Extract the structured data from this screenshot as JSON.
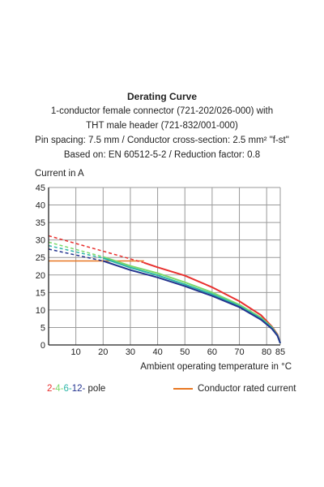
{
  "chart_data": {
    "type": "line",
    "title": "Derating Curve",
    "subtitle_lines": [
      "1-conductor female connector (721-202/026-000) with",
      "THT male header (721-832/001-000)",
      "Pin spacing: 7.5 mm / Conductor cross-section: 2.5 mm² \"f-st\"",
      "Based on: EN 60512-5-2 / Reduction factor: 0.8"
    ],
    "ylabel": "Current in A",
    "xlabel": "Ambient operating temperature in °C",
    "xlim": [
      0,
      85
    ],
    "ylim": [
      0,
      45
    ],
    "x_ticks": [
      "10",
      "20",
      "30",
      "40",
      "50",
      "60",
      "70",
      "80",
      "85"
    ],
    "y_ticks": [
      "0",
      "5",
      "10",
      "15",
      "20",
      "25",
      "30",
      "35",
      "40",
      "45"
    ],
    "grid": true,
    "series": [
      {
        "name": "2-pole",
        "color": "#e8302e",
        "dashed": [
          [
            0,
            31.2
          ],
          [
            35,
            23.5
          ]
        ],
        "values": [
          [
            35,
            23.5
          ],
          [
            40,
            22.2
          ],
          [
            50,
            19.8
          ],
          [
            60,
            16.5
          ],
          [
            70,
            12.5
          ],
          [
            78,
            8.5
          ],
          [
            82,
            5.2
          ],
          [
            84,
            3.0
          ],
          [
            85,
            0.5
          ]
        ]
      },
      {
        "name": "4-pole",
        "color": "#7bd96b",
        "dashed": [
          [
            0,
            29.4
          ],
          [
            20,
            25.2
          ]
        ],
        "values": [
          [
            20,
            25.2
          ],
          [
            30,
            22.6
          ],
          [
            40,
            20.5
          ],
          [
            50,
            17.9
          ],
          [
            60,
            15.0
          ],
          [
            70,
            11.5
          ],
          [
            78,
            7.8
          ],
          [
            82,
            5.0
          ],
          [
            84,
            2.8
          ],
          [
            85,
            0.5
          ]
        ]
      },
      {
        "name": "6-pole",
        "color": "#2bb5a8",
        "dashed": [
          [
            0,
            28.4
          ],
          [
            20,
            24.8
          ]
        ],
        "values": [
          [
            20,
            24.8
          ],
          [
            30,
            22.1
          ],
          [
            40,
            19.9
          ],
          [
            50,
            17.3
          ],
          [
            60,
            14.5
          ],
          [
            70,
            11.1
          ],
          [
            78,
            7.5
          ],
          [
            82,
            4.8
          ],
          [
            84,
            2.7
          ],
          [
            85,
            0.5
          ]
        ]
      },
      {
        "name": "12-pole",
        "color": "#24348f",
        "dashed": [
          [
            0,
            27.4
          ],
          [
            20,
            24.0
          ]
        ],
        "values": [
          [
            20,
            24.0
          ],
          [
            30,
            21.4
          ],
          [
            40,
            19.3
          ],
          [
            50,
            16.8
          ],
          [
            60,
            14.0
          ],
          [
            70,
            10.8
          ],
          [
            78,
            7.2
          ],
          [
            82,
            4.6
          ],
          [
            84,
            2.6
          ],
          [
            85,
            0.5
          ]
        ]
      }
    ],
    "rated_current": {
      "name": "Conductor rated current",
      "color": "#e87722",
      "value": 24,
      "x_end": 35
    },
    "legend": {
      "pole_labels": [
        {
          "text": "2-",
          "color": "#e8302e"
        },
        {
          "text": "4-",
          "color": "#7bd96b"
        },
        {
          "text": "6-",
          "color": "#2bb5a8"
        },
        {
          "text": "12-",
          "color": "#24348f"
        }
      ],
      "pole_suffix": "pole",
      "rated_label": "Conductor rated current",
      "placement": "bottom"
    }
  }
}
